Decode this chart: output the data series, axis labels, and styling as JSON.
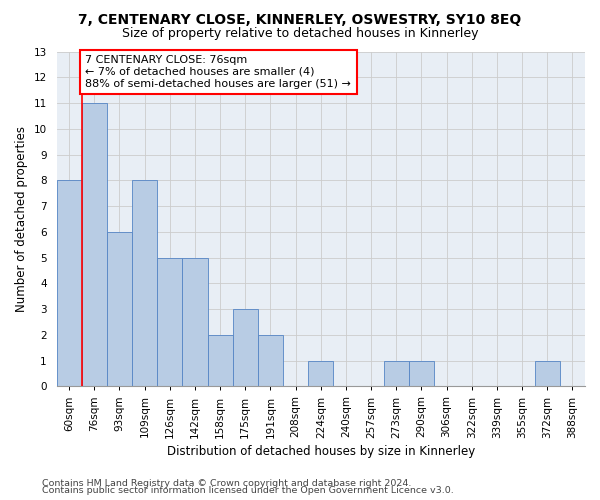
{
  "title": "7, CENTENARY CLOSE, KINNERLEY, OSWESTRY, SY10 8EQ",
  "subtitle": "Size of property relative to detached houses in Kinnerley",
  "xlabel": "Distribution of detached houses by size in Kinnerley",
  "ylabel": "Number of detached properties",
  "footnote1": "Contains HM Land Registry data © Crown copyright and database right 2024.",
  "footnote2": "Contains public sector information licensed under the Open Government Licence v3.0.",
  "categories": [
    "60sqm",
    "76sqm",
    "93sqm",
    "109sqm",
    "126sqm",
    "142sqm",
    "158sqm",
    "175sqm",
    "191sqm",
    "208sqm",
    "224sqm",
    "240sqm",
    "257sqm",
    "273sqm",
    "290sqm",
    "306sqm",
    "322sqm",
    "339sqm",
    "355sqm",
    "372sqm",
    "388sqm"
  ],
  "values": [
    8,
    11,
    6,
    8,
    5,
    5,
    2,
    3,
    2,
    0,
    1,
    0,
    0,
    1,
    1,
    0,
    0,
    0,
    0,
    1,
    0
  ],
  "bar_color": "#b8cce4",
  "bar_edge_color": "#5585c5",
  "annotation_box_text": "7 CENTENARY CLOSE: 76sqm\n← 7% of detached houses are smaller (4)\n88% of semi-detached houses are larger (51) →",
  "annotation_box_color": "white",
  "annotation_box_edge_color": "red",
  "vline_color": "red",
  "vline_xindex": 1,
  "ylim": [
    0,
    13
  ],
  "yticks": [
    0,
    1,
    2,
    3,
    4,
    5,
    6,
    7,
    8,
    9,
    10,
    11,
    12,
    13
  ],
  "grid_color": "#cccccc",
  "bg_color": "#e8eef5",
  "title_fontsize": 10,
  "subtitle_fontsize": 9,
  "annot_fontsize": 8,
  "tick_fontsize": 7.5,
  "xlabel_fontsize": 8.5,
  "ylabel_fontsize": 8.5,
  "footnote_fontsize": 6.8
}
